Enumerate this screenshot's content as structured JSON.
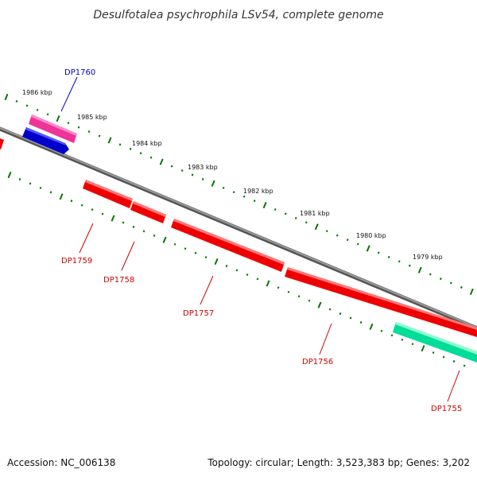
{
  "title": "Desulfotalea psychrophila LSv54, complete genome",
  "footer": {
    "accession": "Accession: NC_006138",
    "summary": "Topology: circular; Length: 3,523,383 bp; Genes: 3,202"
  },
  "kbp_labels": [
    "1986 kbp",
    "1985 kbp",
    "1984 kbp",
    "1983 kbp",
    "1982 kbp",
    "1981 kbp",
    "1980 kbp",
    "1979 kbp"
  ],
  "genes": [
    {
      "id": "DP1760",
      "strand": "forward",
      "color": "#0000cc",
      "label_color": "#0000cc"
    },
    {
      "id": "DP1759",
      "strand": "reverse",
      "color": "#ee0000",
      "label_color": "#cc0000"
    },
    {
      "id": "DP1758",
      "strand": "reverse",
      "color": "#ee0000",
      "label_color": "#cc0000"
    },
    {
      "id": "DP1757",
      "strand": "reverse",
      "color": "#ee0000",
      "label_color": "#cc0000"
    },
    {
      "id": "DP1756",
      "strand": "reverse",
      "color": "#ee0000",
      "label_color": "#cc0000"
    },
    {
      "id": "DP1755",
      "strand": "reverse",
      "color": "#00dd99",
      "label_color": "#cc0000"
    }
  ],
  "colors": {
    "backbone": "#777777",
    "ticks": "#007700",
    "pink_feature": "#ee3399",
    "red_feature": "#ee0000",
    "blue_feature": "#0000cc",
    "green_feature": "#00dd99"
  }
}
